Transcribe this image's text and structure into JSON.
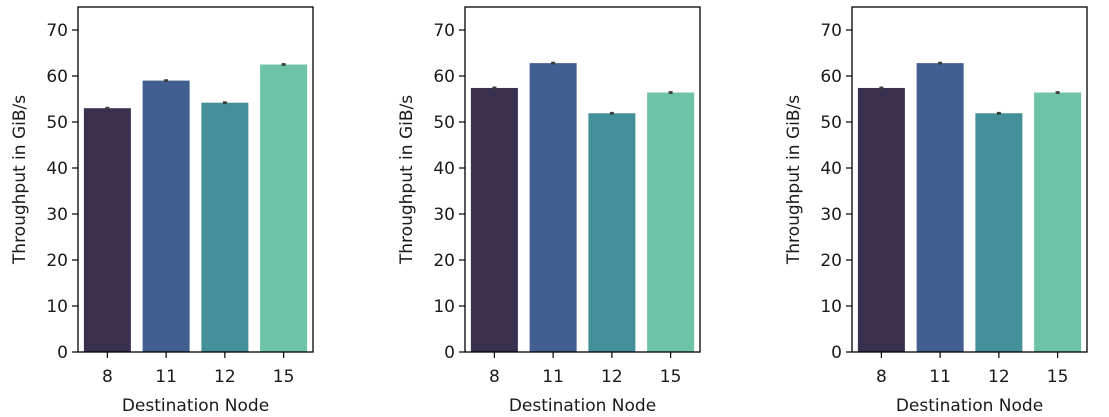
{
  "chart_data": [
    {
      "type": "bar",
      "categories": [
        "8",
        "11",
        "12",
        "15"
      ],
      "values": [
        53.0,
        59.0,
        54.2,
        62.5
      ],
      "errors": [
        0.3,
        0.3,
        0.3,
        0.3
      ],
      "colors": [
        "#3b2f50",
        "#425f92",
        "#438f9a",
        "#6dc3a8"
      ],
      "xlabel": "Destination Node",
      "ylabel": "Throughput in GiB/s",
      "ylim": [
        0,
        75
      ],
      "yticks": [
        0,
        10,
        20,
        30,
        40,
        50,
        60,
        70
      ],
      "grid": false
    },
    {
      "type": "bar",
      "categories": [
        "8",
        "11",
        "12",
        "15"
      ],
      "values": [
        57.4,
        62.8,
        51.9,
        56.4
      ],
      "errors": [
        0.3,
        0.3,
        0.3,
        0.3
      ],
      "colors": [
        "#3b2f50",
        "#425f92",
        "#438f9a",
        "#6dc3a8"
      ],
      "xlabel": "Destination Node",
      "ylabel": "Throughput in GiB/s",
      "ylim": [
        0,
        75
      ],
      "yticks": [
        0,
        10,
        20,
        30,
        40,
        50,
        60,
        70
      ],
      "grid": false
    },
    {
      "type": "bar",
      "categories": [
        "8",
        "11",
        "12",
        "15"
      ],
      "values": [
        57.4,
        62.8,
        51.9,
        56.4
      ],
      "errors": [
        0.3,
        0.3,
        0.3,
        0.3
      ],
      "colors": [
        "#3b2f50",
        "#425f92",
        "#438f9a",
        "#6dc3a8"
      ],
      "xlabel": "Destination Node",
      "ylabel": "Throughput in GiB/s",
      "ylim": [
        0,
        75
      ],
      "yticks": [
        0,
        10,
        20,
        30,
        40,
        50,
        60,
        70
      ],
      "grid": false
    }
  ]
}
